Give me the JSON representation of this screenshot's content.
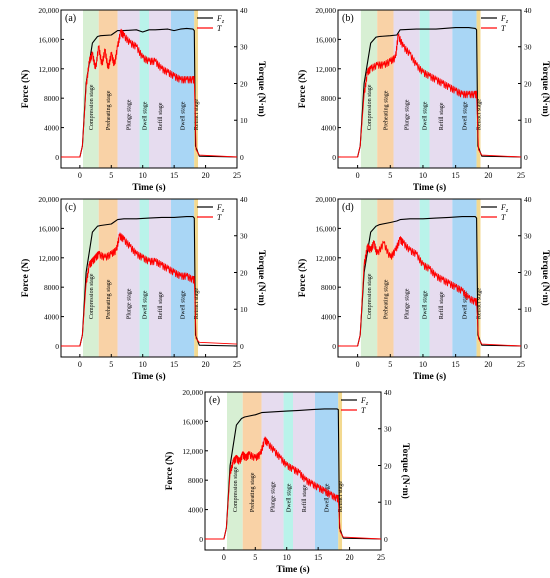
{
  "figure": {
    "stage_labels": [
      "Compression stage",
      "Preheating stage",
      "Plunge stage",
      "Dwell stage",
      "Refill stage",
      "Dwell stage",
      "Retract stage"
    ],
    "stage_colors": [
      "#d7efd3",
      "#f9d2a6",
      "#e6dcef",
      "#b9f3ea",
      "#e6dcef",
      "#a9d6f5",
      "#f3d98f"
    ],
    "colors": {
      "force": "#000000",
      "torque": "#ff0000"
    }
  },
  "chart_data": [
    {
      "type": "line",
      "panel_label": "(a)",
      "xlabel": "Time (s)",
      "ylabel": "Force (N)",
      "y2label": "Torque (N·m)",
      "xlim": [
        -3,
        25
      ],
      "xticks": [
        0,
        5,
        10,
        15,
        20,
        25
      ],
      "ylim": [
        -1500,
        20000
      ],
      "yticks": [
        0,
        4000,
        8000,
        12000,
        16000,
        20000
      ],
      "ytick_labels": [
        "0",
        "4000",
        "8000",
        "12,000",
        "16,000",
        "20,000"
      ],
      "y2lim": [
        -3,
        40
      ],
      "y2ticks": [
        0,
        10,
        20,
        30,
        40
      ],
      "stage_bounds": [
        0.5,
        3,
        6,
        9.5,
        11,
        14.5,
        18.2,
        18.8
      ],
      "legend": [
        "Fz",
        "T"
      ],
      "series": [
        {
          "name": "Fz",
          "axis": "left",
          "x": [
            -3,
            0,
            0.4,
            1,
            2,
            2.8,
            3.3,
            5,
            6,
            7,
            9,
            10,
            11,
            12,
            14,
            15,
            16,
            17,
            18,
            18.2,
            18.4,
            19,
            25
          ],
          "y": [
            0,
            0,
            1500,
            10000,
            15500,
            16400,
            16500,
            16600,
            17200,
            17200,
            17300,
            17000,
            17300,
            17300,
            17400,
            17200,
            17400,
            17500,
            17400,
            17200,
            1500,
            100,
            0
          ]
        },
        {
          "name": "T",
          "axis": "right",
          "x": [
            -3,
            0,
            0.4,
            1,
            1.5,
            2,
            2.5,
            3,
            3.5,
            4,
            4.5,
            5,
            5.5,
            6,
            6.5,
            7,
            8,
            9,
            10,
            11,
            12,
            13,
            14,
            15,
            16,
            17,
            18,
            18.2,
            18.5,
            19,
            25
          ],
          "y": [
            0,
            0,
            3,
            19,
            26,
            28,
            24,
            30,
            25,
            29,
            24,
            28,
            25,
            30,
            34,
            33,
            31,
            30,
            27,
            26,
            26,
            24,
            23,
            22,
            21,
            21,
            21,
            21,
            2,
            0.5,
            0
          ]
        }
      ]
    },
    {
      "type": "line",
      "panel_label": "(b)",
      "xlabel": "Time (s)",
      "ylabel": "Force (N)",
      "y2label": "Torque (N·m)",
      "xlim": [
        -3,
        25
      ],
      "xticks": [
        0,
        5,
        10,
        15,
        20,
        25
      ],
      "ylim": [
        -1500,
        20000
      ],
      "yticks": [
        0,
        4000,
        8000,
        12000,
        16000,
        20000
      ],
      "ytick_labels": [
        "0",
        "4000",
        "8000",
        "12,000",
        "16,000",
        "20,000"
      ],
      "y2lim": [
        -3,
        40
      ],
      "y2ticks": [
        0,
        10,
        20,
        30,
        40
      ],
      "stage_bounds": [
        0.5,
        3,
        5.5,
        9.5,
        11,
        14.5,
        18.2,
        18.8
      ],
      "legend": [
        "Fz",
        "T"
      ],
      "series": [
        {
          "name": "Fz",
          "axis": "left",
          "x": [
            -3,
            0,
            0.4,
            1,
            2,
            2.8,
            3.3,
            5,
            6,
            6.5,
            9,
            12,
            15,
            17,
            18,
            18.2,
            18.4,
            19,
            25
          ],
          "y": [
            0,
            0,
            1500,
            10000,
            15500,
            16300,
            16400,
            16500,
            16600,
            17300,
            17400,
            17400,
            17600,
            17600,
            17500,
            17300,
            1500,
            100,
            0
          ]
        },
        {
          "name": "T",
          "axis": "right",
          "x": [
            -3,
            0,
            0.4,
            1,
            1.5,
            2,
            3,
            4,
            5,
            5.8,
            6.2,
            7,
            8,
            9,
            10,
            11,
            12,
            13,
            14,
            15,
            16,
            17,
            18,
            18.2,
            18.5,
            19,
            25
          ],
          "y": [
            0,
            0,
            3,
            17,
            23,
            24,
            25,
            25,
            26,
            27,
            33,
            30,
            28,
            25,
            23,
            22,
            21,
            20,
            19,
            18,
            17,
            17,
            17,
            17,
            2,
            0.5,
            0
          ]
        }
      ]
    },
    {
      "type": "line",
      "panel_label": "(c)",
      "xlabel": "Time (s)",
      "ylabel": "Force (N)",
      "y2label": "Torque (N·m)",
      "xlim": [
        -3,
        25
      ],
      "xticks": [
        0,
        5,
        10,
        15,
        20,
        25
      ],
      "ylim": [
        -1500,
        20000
      ],
      "yticks": [
        0,
        4000,
        8000,
        12000,
        16000,
        20000
      ],
      "ytick_labels": [
        "0",
        "4000",
        "8000",
        "12,000",
        "16,000",
        "20,000"
      ],
      "y2lim": [
        -3,
        40
      ],
      "y2ticks": [
        0,
        10,
        20,
        30,
        40
      ],
      "stage_bounds": [
        0.5,
        3,
        6,
        9.5,
        11,
        14.5,
        18.2,
        18.8
      ],
      "legend": [
        "Fz",
        "T"
      ],
      "series": [
        {
          "name": "Fz",
          "axis": "left",
          "x": [
            -3,
            0,
            0.4,
            1,
            2,
            2.8,
            3.3,
            5,
            6,
            7,
            9,
            11,
            13,
            15,
            17,
            18,
            18.2,
            18.4,
            19,
            25
          ],
          "y": [
            0,
            0,
            1500,
            10000,
            15500,
            16300,
            16400,
            16600,
            17200,
            17300,
            17300,
            17400,
            17500,
            17500,
            17600,
            17600,
            17400,
            1500,
            100,
            0
          ]
        },
        {
          "name": "T",
          "axis": "right",
          "x": [
            -3,
            0,
            0.4,
            1,
            1.5,
            2,
            2.5,
            3,
            4,
            5,
            5.8,
            6.3,
            7,
            8,
            9,
            10,
            11,
            12,
            13,
            14,
            15,
            16,
            17,
            18,
            18.2,
            18.5,
            19,
            25
          ],
          "y": [
            0,
            0,
            3,
            17,
            22,
            23,
            24,
            25,
            24,
            25,
            26,
            30,
            29,
            27,
            25,
            24,
            23,
            23,
            22,
            21,
            20,
            19,
            19,
            18,
            18,
            2,
            1,
            0.5
          ]
        }
      ]
    },
    {
      "type": "line",
      "panel_label": "(d)",
      "xlabel": "Time (s)",
      "ylabel": "Force (N)",
      "y2label": "Torque (N·m)",
      "xlim": [
        -3,
        25
      ],
      "xticks": [
        0,
        5,
        10,
        15,
        20,
        25
      ],
      "ylim": [
        -1500,
        20000
      ],
      "yticks": [
        0,
        4000,
        8000,
        12000,
        16000,
        20000
      ],
      "ytick_labels": [
        "0",
        "4000",
        "8000",
        "12,000",
        "16,000",
        "20,000"
      ],
      "y2lim": [
        -3,
        40
      ],
      "y2ticks": [
        0,
        10,
        20,
        30,
        40
      ],
      "stage_bounds": [
        0.5,
        3,
        5.5,
        9.5,
        11,
        14.5,
        18.2,
        18.8
      ],
      "legend": [
        "Fz",
        "T"
      ],
      "series": [
        {
          "name": "Fz",
          "axis": "left",
          "x": [
            -3,
            0,
            0.4,
            1,
            2,
            2.8,
            3.3,
            5,
            6,
            6.5,
            8,
            10,
            12,
            14,
            16,
            18,
            18.2,
            18.4,
            19,
            25
          ],
          "y": [
            0,
            0,
            1500,
            10000,
            15500,
            16300,
            16500,
            16800,
            17000,
            17200,
            17300,
            17300,
            17400,
            17500,
            17600,
            17600,
            17400,
            1500,
            100,
            0
          ]
        },
        {
          "name": "T",
          "axis": "right",
          "x": [
            -3,
            0,
            0.4,
            1,
            1.5,
            2,
            2.5,
            3,
            4,
            5,
            5.8,
            6.5,
            7,
            8,
            9,
            10,
            11,
            12,
            13,
            14,
            15,
            16,
            17,
            18,
            18.2,
            18.5,
            19,
            25
          ],
          "y": [
            0,
            0,
            3,
            22,
            27,
            26,
            28,
            25,
            28,
            24,
            26,
            29,
            28,
            26,
            25,
            22,
            21,
            19,
            18,
            17,
            16,
            15,
            13,
            12,
            12,
            2,
            0.5,
            0
          ]
        }
      ]
    },
    {
      "type": "line",
      "panel_label": "(e)",
      "xlabel": "Time (s)",
      "ylabel": "Force (N)",
      "y2label": "Torque (N·m)",
      "xlim": [
        -3,
        25
      ],
      "xticks": [
        0,
        5,
        10,
        15,
        20,
        25
      ],
      "ylim": [
        -1500,
        20000
      ],
      "yticks": [
        0,
        4000,
        8000,
        12000,
        16000,
        20000
      ],
      "ytick_labels": [
        "0",
        "4000",
        "8000",
        "12,000",
        "16,000",
        "20,000"
      ],
      "y2lim": [
        -3,
        40
      ],
      "y2ticks": [
        0,
        10,
        20,
        30,
        40
      ],
      "stage_bounds": [
        0.5,
        3,
        6,
        9.5,
        11,
        14.5,
        18.2,
        18.8
      ],
      "legend": [
        "Fz",
        "T"
      ],
      "series": [
        {
          "name": "Fz",
          "axis": "left",
          "x": [
            -3,
            0,
            0.4,
            1,
            2,
            2.8,
            3.3,
            5,
            6,
            8,
            10,
            12,
            14,
            16,
            18,
            18.2,
            18.4,
            19,
            25
          ],
          "y": [
            0,
            0,
            1500,
            10000,
            15500,
            16400,
            16600,
            16900,
            17200,
            17300,
            17400,
            17500,
            17600,
            17700,
            17700,
            17600,
            1500,
            100,
            0
          ]
        },
        {
          "name": "T",
          "axis": "right",
          "x": [
            -3,
            0,
            0.4,
            1,
            1.5,
            2,
            2.5,
            3,
            3.5,
            4,
            5,
            5.8,
            6.5,
            7,
            8,
            9,
            10,
            11,
            12,
            13,
            14,
            15,
            16,
            17,
            18,
            18.2,
            18.5,
            19,
            25
          ],
          "y": [
            0,
            0,
            3,
            18,
            21,
            22,
            21,
            23,
            22,
            23,
            22,
            23,
            27,
            26,
            24,
            22,
            20,
            19,
            18,
            16,
            15,
            14,
            13,
            12,
            11,
            11,
            2,
            0.5,
            0
          ]
        }
      ]
    }
  ]
}
